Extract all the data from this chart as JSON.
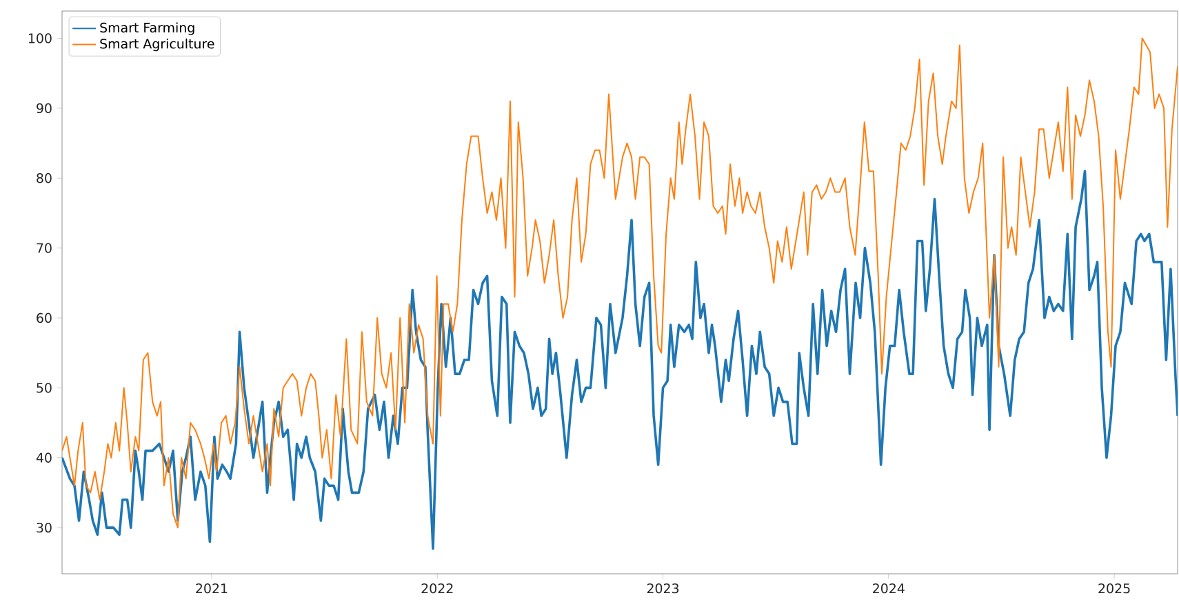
{
  "chart_data": {
    "type": "line",
    "legend": "top left",
    "xlim": [
      2020.337,
      2025.281
    ],
    "ylim": [
      23.4,
      103.9
    ],
    "xticks": [
      {
        "value": 2021,
        "label": "2021"
      },
      {
        "value": 2022,
        "label": "2022"
      },
      {
        "value": 2023,
        "label": "2023"
      },
      {
        "value": 2024,
        "label": "2024"
      },
      {
        "value": 2025,
        "label": "2025"
      }
    ],
    "yticks": [
      30,
      40,
      50,
      60,
      70,
      80,
      90,
      100
    ],
    "series": [
      {
        "name": "Smart Farming",
        "color": "#1f77b4",
        "x": [
          2020.337,
          2020.372,
          2020.392,
          2020.412,
          2020.433,
          2020.457,
          2020.473,
          2020.494,
          2020.514,
          2020.534,
          2020.565,
          2020.591,
          2020.605,
          2020.626,
          2020.642,
          2020.662,
          2020.677,
          2020.693,
          2020.707,
          2020.738,
          2020.768,
          2020.789,
          2020.809,
          2020.829,
          2020.85,
          2020.87,
          2020.886,
          2020.906,
          2020.927,
          2020.951,
          2020.972,
          2020.992,
          2021.012,
          2021.026,
          2021.047,
          2021.067,
          2021.083,
          2021.108,
          2021.124,
          2021.144,
          2021.165,
          2021.185,
          2021.205,
          2021.225,
          2021.246,
          2021.26,
          2021.276,
          2021.297,
          2021.317,
          2021.337,
          2021.364,
          2021.378,
          2021.398,
          2021.419,
          2021.435,
          2021.459,
          2021.484,
          2021.5,
          2021.52,
          2021.541,
          2021.561,
          2021.581,
          2021.606,
          2021.622,
          2021.652,
          2021.673,
          2021.693,
          2021.723,
          2021.744,
          2021.764,
          2021.784,
          2021.805,
          2021.825,
          2021.845,
          2021.866,
          2021.89,
          2021.906,
          2021.927,
          2021.947,
          2021.957,
          2021.981,
          2022.002,
          2022.018,
          2022.038,
          2022.059,
          2022.079,
          2022.099,
          2022.12,
          2022.14,
          2022.16,
          2022.181,
          2022.201,
          2022.221,
          2022.242,
          2022.266,
          2022.286,
          2022.307,
          2022.323,
          2022.343,
          2022.364,
          2022.384,
          2022.404,
          2022.424,
          2022.445,
          2022.461,
          2022.481,
          2022.496,
          2022.51,
          2022.526,
          2022.546,
          2022.573,
          2022.597,
          2022.618,
          2022.638,
          2022.658,
          2022.679,
          2022.705,
          2022.725,
          2022.746,
          2022.766,
          2022.79,
          2022.821,
          2022.841,
          2022.861,
          2022.878,
          2022.898,
          2022.918,
          2022.939,
          2022.959,
          2022.979,
          2023.0,
          2023.02,
          2023.034,
          2023.05,
          2023.071,
          2023.095,
          2023.115,
          2023.13,
          2023.146,
          2023.166,
          2023.182,
          2023.203,
          2023.217,
          2023.231,
          2023.258,
          2023.278,
          2023.292,
          2023.313,
          2023.333,
          2023.353,
          2023.373,
          2023.394,
          2023.414,
          2023.43,
          2023.451,
          2023.471,
          2023.491,
          2023.512,
          2023.532,
          2023.552,
          2023.573,
          2023.593,
          2023.604,
          2023.624,
          2023.645,
          2023.665,
          2023.685,
          2023.706,
          2023.726,
          2023.746,
          2023.767,
          2023.787,
          2023.807,
          2023.828,
          2023.854,
          2023.874,
          2023.895,
          2023.919,
          2023.939,
          2023.966,
          2023.986,
          2024.006,
          2024.027,
          2024.047,
          2024.067,
          2024.092,
          2024.108,
          2024.128,
          2024.149,
          2024.165,
          2024.183,
          2024.204,
          2024.224,
          2024.244,
          2024.265,
          2024.285,
          2024.305,
          2024.326,
          2024.34,
          2024.36,
          2024.372,
          2024.393,
          2024.413,
          2024.437,
          2024.447,
          2024.468,
          2024.488,
          2024.512,
          2024.539,
          2024.559,
          2024.579,
          2024.6,
          2024.62,
          2024.64,
          2024.667,
          2024.691,
          2024.712,
          2024.732,
          2024.752,
          2024.773,
          2024.793,
          2024.813,
          2024.829,
          2024.854,
          2024.87,
          2024.89,
          2024.911,
          2024.925,
          2024.945,
          2024.966,
          2024.986,
          2025.006,
          2025.027,
          2025.047,
          2025.077,
          2025.098,
          2025.118,
          2025.134,
          2025.155,
          2025.175,
          2025.21,
          2025.23,
          2025.25,
          2025.271,
          2025.281
        ],
        "values": [
          40,
          37,
          36,
          31,
          38,
          34,
          31,
          29,
          35,
          30,
          30,
          29,
          34,
          34,
          30,
          41,
          38,
          34,
          41,
          41,
          42,
          40,
          38,
          41,
          31,
          38,
          40,
          43,
          34,
          38,
          36,
          28,
          43,
          37,
          39,
          38,
          37,
          42,
          58,
          50,
          45,
          40,
          44,
          48,
          35,
          40,
          45,
          48,
          43,
          44,
          34,
          42,
          40,
          43,
          40,
          38,
          31,
          37,
          36,
          36,
          34,
          47,
          38,
          35,
          35,
          38,
          47,
          49,
          44,
          48,
          40,
          46,
          42,
          50,
          50,
          64,
          58,
          54,
          53,
          44,
          27,
          50,
          62,
          53,
          60,
          52,
          52,
          54,
          54,
          64,
          62,
          65,
          66,
          51,
          46,
          63,
          62,
          45,
          58,
          56,
          55,
          52,
          47,
          50,
          46,
          47,
          57,
          52,
          55,
          49,
          40,
          49,
          54,
          48,
          50,
          50,
          60,
          59,
          50,
          62,
          55,
          60,
          66,
          74,
          62,
          56,
          63,
          65,
          46,
          39,
          50,
          51,
          59,
          53,
          59,
          58,
          59,
          57,
          68,
          60,
          62,
          55,
          59,
          56,
          48,
          54,
          51,
          57,
          61,
          54,
          46,
          56,
          52,
          58,
          53,
          52,
          46,
          50,
          48,
          48,
          42,
          42,
          55,
          50,
          46,
          62,
          52,
          64,
          56,
          61,
          58,
          64,
          67,
          52,
          65,
          60,
          70,
          65,
          58,
          39,
          50,
          56,
          56,
          64,
          58,
          52,
          52,
          71,
          71,
          61,
          67,
          77,
          66,
          56,
          52,
          50,
          57,
          58,
          64,
          60,
          49,
          60,
          56,
          59,
          44,
          69,
          56,
          52,
          46,
          54,
          57,
          58,
          65,
          67,
          74,
          60,
          63,
          61,
          62,
          61,
          72,
          57,
          73,
          77,
          81,
          64,
          66,
          68,
          50,
          40,
          46,
          56,
          58,
          65,
          62,
          71,
          72,
          71,
          72,
          68,
          68,
          54,
          67,
          52,
          46
        ]
      },
      {
        "name": "Smart Agriculture",
        "color": "#ff7f0e",
        "x": [
          2020.337,
          2020.357,
          2020.372,
          2020.392,
          2020.408,
          2020.428,
          2020.443,
          2020.463,
          2020.483,
          2020.504,
          2020.524,
          2020.54,
          2020.555,
          2020.575,
          2020.591,
          2020.611,
          2020.626,
          2020.642,
          2020.662,
          2020.677,
          2020.697,
          2020.717,
          2020.738,
          2020.758,
          2020.774,
          2020.789,
          2020.809,
          2020.829,
          2020.85,
          2020.866,
          2020.886,
          2020.906,
          2020.927,
          2020.951,
          2020.968,
          2020.988,
          2021.008,
          2021.022,
          2021.043,
          2021.063,
          2021.083,
          2021.104,
          2021.124,
          2021.144,
          2021.165,
          2021.185,
          2021.205,
          2021.225,
          2021.246,
          2021.26,
          2021.276,
          2021.297,
          2021.317,
          2021.337,
          2021.358,
          2021.378,
          2021.398,
          2021.419,
          2021.439,
          2021.459,
          2021.475,
          2021.49,
          2021.51,
          2021.53,
          2021.551,
          2021.571,
          2021.597,
          2021.618,
          2021.646,
          2021.666,
          2021.687,
          2021.713,
          2021.734,
          2021.754,
          2021.774,
          2021.795,
          2021.815,
          2021.835,
          2021.856,
          2021.876,
          2021.896,
          2021.917,
          2021.937,
          2021.957,
          2021.981,
          2021.998,
          2022.014,
          2022.028,
          2022.048,
          2022.069,
          2022.089,
          2022.109,
          2022.13,
          2022.15,
          2022.181,
          2022.201,
          2022.221,
          2022.242,
          2022.262,
          2022.282,
          2022.303,
          2022.323,
          2022.343,
          2022.359,
          2022.38,
          2022.4,
          2022.42,
          2022.435,
          2022.455,
          2022.475,
          2022.496,
          2022.516,
          2022.536,
          2022.557,
          2022.577,
          2022.597,
          2022.618,
          2022.638,
          2022.658,
          2022.679,
          2022.699,
          2022.719,
          2022.74,
          2022.76,
          2022.79,
          2022.821,
          2022.841,
          2022.861,
          2022.878,
          2022.898,
          2022.918,
          2022.939,
          2022.959,
          2022.979,
          2022.993,
          2023.014,
          2023.034,
          2023.05,
          2023.071,
          2023.085,
          2023.101,
          2023.121,
          2023.142,
          2023.162,
          2023.182,
          2023.203,
          2023.223,
          2023.243,
          2023.264,
          2023.278,
          2023.298,
          2023.319,
          2023.339,
          2023.353,
          2023.373,
          2023.39,
          2023.41,
          2023.43,
          2023.451,
          2023.471,
          2023.491,
          2023.508,
          2023.528,
          2023.548,
          2023.569,
          2023.589,
          2023.604,
          2023.624,
          2023.641,
          2023.661,
          2023.681,
          2023.702,
          2023.722,
          2023.742,
          2023.763,
          2023.783,
          2023.807,
          2023.828,
          2023.852,
          2023.872,
          2023.893,
          2023.913,
          2023.933,
          2023.954,
          2023.97,
          2023.99,
          2024.011,
          2024.035,
          2024.055,
          2024.076,
          2024.096,
          2024.116,
          2024.137,
          2024.157,
          2024.177,
          2024.198,
          2024.218,
          2024.238,
          2024.254,
          2024.279,
          2024.299,
          2024.315,
          2024.336,
          2024.356,
          2024.376,
          2024.397,
          2024.417,
          2024.447,
          2024.468,
          2024.488,
          2024.508,
          2024.529,
          2024.545,
          2024.565,
          2024.586,
          2024.606,
          2024.626,
          2024.647,
          2024.667,
          2024.687,
          2024.712,
          2024.732,
          2024.752,
          2024.773,
          2024.793,
          2024.813,
          2024.829,
          2024.85,
          2024.87,
          2024.89,
          2024.911,
          2024.931,
          2024.951,
          2024.972,
          2024.986,
          2025.006,
          2025.027,
          2025.047,
          2025.067,
          2025.088,
          2025.108,
          2025.124,
          2025.142,
          2025.159,
          2025.179,
          2025.199,
          2025.22,
          2025.236,
          2025.256,
          2025.281
        ],
        "values": [
          41,
          43,
          40,
          36,
          41,
          45,
          36,
          35,
          38,
          34,
          38,
          42,
          40,
          45,
          41,
          50,
          45,
          38,
          43,
          41,
          54,
          55,
          48,
          46,
          48,
          36,
          40,
          32,
          30,
          40,
          37,
          45,
          44,
          42,
          40,
          37,
          42,
          38,
          45,
          46,
          42,
          45,
          53,
          47,
          42,
          46,
          42,
          38,
          42,
          36,
          47,
          43,
          50,
          51,
          52,
          51,
          46,
          50,
          52,
          51,
          46,
          40,
          44,
          37,
          49,
          43,
          57,
          44,
          42,
          58,
          48,
          46,
          60,
          52,
          50,
          55,
          44,
          60,
          45,
          62,
          55,
          59,
          57,
          46,
          42,
          66,
          46,
          62,
          62,
          58,
          62,
          74,
          82,
          86,
          86,
          80,
          75,
          78,
          74,
          80,
          70,
          91,
          63,
          88,
          80,
          66,
          70,
          74,
          71,
          65,
          69,
          74,
          66,
          60,
          63,
          74,
          80,
          68,
          72,
          82,
          84,
          84,
          80,
          92,
          77,
          83,
          85,
          83,
          77,
          83,
          83,
          82,
          66,
          56,
          55,
          72,
          80,
          77,
          88,
          82,
          87,
          92,
          86,
          77,
          88,
          86,
          76,
          75,
          76,
          72,
          82,
          76,
          80,
          75,
          78,
          76,
          75,
          78,
          73,
          70,
          65,
          71,
          68,
          73,
          67,
          71,
          74,
          78,
          69,
          78,
          79,
          77,
          78,
          80,
          78,
          78,
          80,
          73,
          69,
          78,
          88,
          81,
          81,
          66,
          52,
          63,
          70,
          78,
          85,
          84,
          86,
          90,
          97,
          79,
          91,
          95,
          86,
          82,
          86,
          91,
          90,
          99,
          80,
          75,
          78,
          80,
          85,
          60,
          69,
          53,
          83,
          70,
          73,
          69,
          83,
          78,
          73,
          78,
          87,
          87,
          80,
          84,
          88,
          81,
          93,
          77,
          89,
          86,
          89,
          94,
          91,
          86,
          76,
          58,
          53,
          84,
          77,
          82,
          87,
          93,
          92,
          100,
          99,
          98,
          90,
          92,
          90,
          73,
          87,
          96
        ]
      }
    ]
  }
}
